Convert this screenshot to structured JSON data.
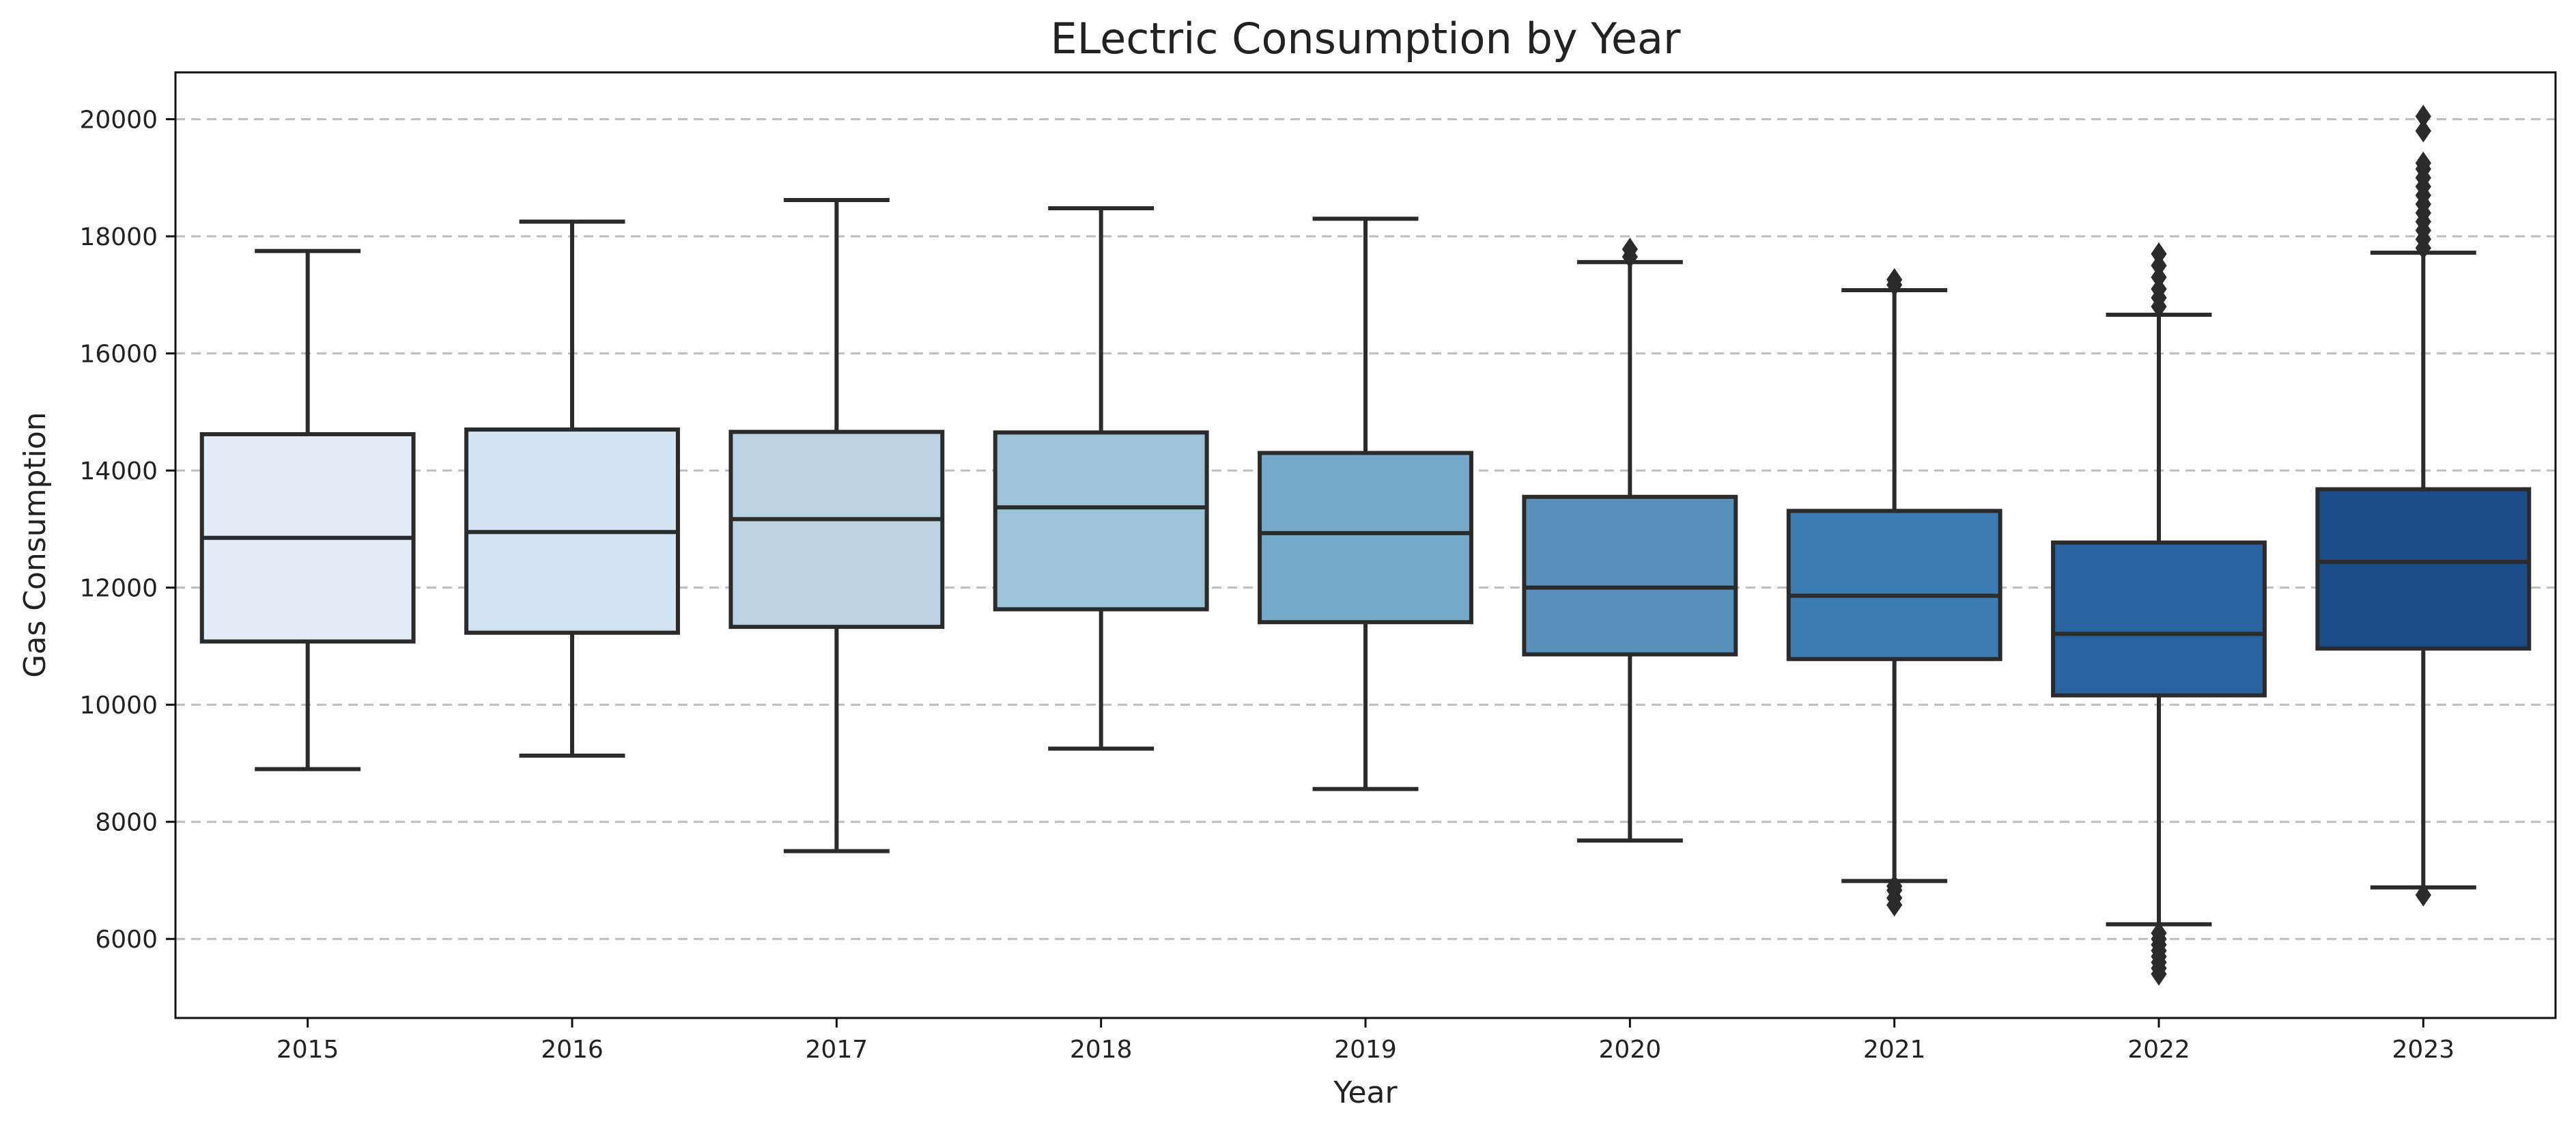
{
  "chart_data": {
    "type": "box",
    "title": "ELectric Consumption by Year",
    "xlabel": "Year",
    "ylabel": "Gas Consumption",
    "ylim": [
      4650,
      20800
    ],
    "yticks": [
      6000,
      8000,
      10000,
      12000,
      14000,
      16000,
      18000,
      20000
    ],
    "grid": "horizontal dashed",
    "categories": [
      "2015",
      "2016",
      "2017",
      "2018",
      "2019",
      "2020",
      "2021",
      "2022",
      "2023"
    ],
    "colors": [
      "#e4eef8",
      "#d3e3f2",
      "#bcd3e4",
      "#9cc3d8",
      "#75a9c9",
      "#5891bb",
      "#3d7cb2",
      "#2963a0",
      "#1a4d87"
    ],
    "boxes": [
      {
        "year": "2015",
        "whisker_low": 8900,
        "q1": 11080,
        "median": 12850,
        "q3": 14620,
        "whisker_high": 17750,
        "outliers": []
      },
      {
        "year": "2016",
        "whisker_low": 9130,
        "q1": 11230,
        "median": 12950,
        "q3": 14700,
        "whisker_high": 18250,
        "outliers": []
      },
      {
        "year": "2017",
        "whisker_low": 7500,
        "q1": 11330,
        "median": 13170,
        "q3": 14660,
        "whisker_high": 18620,
        "outliers": []
      },
      {
        "year": "2018",
        "whisker_low": 9250,
        "q1": 11630,
        "median": 13370,
        "q3": 14650,
        "whisker_high": 18480,
        "outliers": []
      },
      {
        "year": "2019",
        "whisker_low": 8560,
        "q1": 11410,
        "median": 12930,
        "q3": 14300,
        "whisker_high": 18300,
        "outliers": []
      },
      {
        "year": "2020",
        "whisker_low": 7680,
        "q1": 10860,
        "median": 12000,
        "q3": 13550,
        "whisker_high": 17560,
        "outliers": [
          17650,
          17780
        ]
      },
      {
        "year": "2021",
        "whisker_low": 6990,
        "q1": 10780,
        "median": 11860,
        "q3": 13310,
        "whisker_high": 17080,
        "outliers": [
          6580,
          6700,
          6830,
          6900,
          17170,
          17260
        ]
      },
      {
        "year": "2022",
        "whisker_low": 6250,
        "q1": 10160,
        "median": 11210,
        "q3": 12770,
        "whisker_high": 16660,
        "outliers": [
          5400,
          5500,
          5600,
          5700,
          5800,
          5900,
          6000,
          6100,
          16800,
          16950,
          17100,
          17300,
          17500,
          17700
        ]
      },
      {
        "year": "2023",
        "whisker_low": 6880,
        "q1": 10960,
        "median": 12440,
        "q3": 13680,
        "whisker_high": 17720,
        "outliers": [
          6750,
          17800,
          17950,
          18100,
          18250,
          18400,
          18550,
          18700,
          18850,
          19000,
          19150,
          19250,
          19800,
          20050
        ]
      }
    ]
  }
}
